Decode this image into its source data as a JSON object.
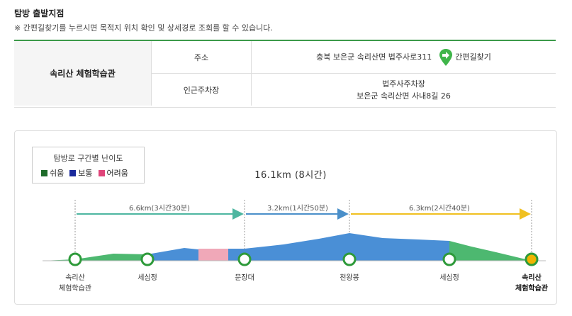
{
  "header": {
    "title": "탐방 출발지점",
    "notice": "※ 간편길찾기를 누르시면 목적지 위치 확인 및 상세경로 조회를 할 수 있습니다."
  },
  "info": {
    "place": "속리산 체험학습관",
    "address_label": "주소",
    "address_value": "충북 보은군 속리산면 법주사로311",
    "nav_button": "간편길찾기",
    "parking_label": "인근주차장",
    "parking_name": "법주사주차장",
    "parking_address": "보은군 속리산면 사내8길 26"
  },
  "legend": {
    "title": "탐방로 구간별 난이도",
    "items": [
      {
        "label": "쉬움",
        "color": "#1e6b2a"
      },
      {
        "label": "보통",
        "color": "#1a2a9c"
      },
      {
        "label": "어려움",
        "color": "#e0457a"
      }
    ]
  },
  "route": {
    "total": "16.1km (8시간)",
    "segments": [
      {
        "label": "6.6km(3시간30분)",
        "color": "#4db6a0"
      },
      {
        "label": "3.2km(1시간50분)",
        "color": "#4a8fc9"
      },
      {
        "label": "6.3km(2시간40분)",
        "color": "#f0c020"
      }
    ],
    "stops": [
      {
        "line1": "속리산",
        "line2": "체험학습관"
      },
      {
        "line1": "세심정",
        "line2": ""
      },
      {
        "line1": "문장대",
        "line2": ""
      },
      {
        "line1": "천왕봉",
        "line2": ""
      },
      {
        "line1": "세심정",
        "line2": ""
      },
      {
        "line1": "속리산",
        "line2": "체험학습관"
      }
    ]
  }
}
